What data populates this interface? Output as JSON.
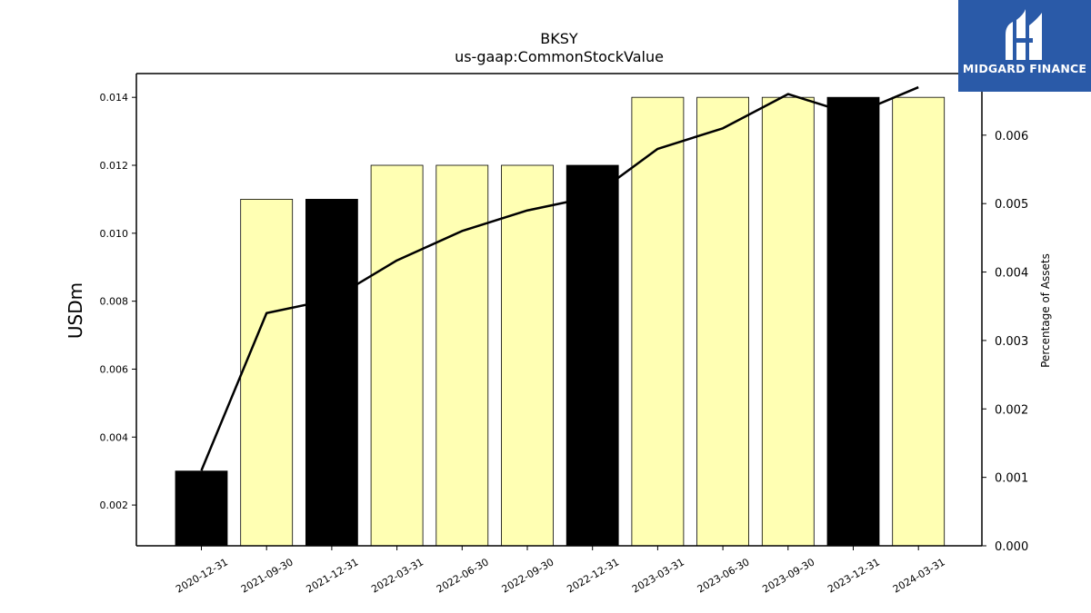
{
  "chart_data": {
    "type": "bar",
    "title": "BKSY",
    "subtitle": "us-gaap:CommonStockValue",
    "ylabel": "USDm",
    "y2label": "Percentage of Assets",
    "ylim": [
      0.0008,
      0.0147
    ],
    "y2lim": [
      0.0,
      0.0069
    ],
    "yticks": [
      "0.002",
      "0.004",
      "0.006",
      "0.008",
      "0.010",
      "0.012",
      "0.014"
    ],
    "y2ticks": [
      "0.000",
      "0.001",
      "0.002",
      "0.003",
      "0.004",
      "0.005",
      "0.006"
    ],
    "categories": [
      "2020-12-31",
      "2021-09-30",
      "2021-12-31",
      "2022-03-31",
      "2022-06-30",
      "2022-09-30",
      "2022-12-31",
      "2023-03-31",
      "2023-06-30",
      "2023-09-30",
      "2023-12-31",
      "2024-03-31"
    ],
    "series": [
      {
        "name": "",
        "kind": "bar",
        "axis": "left",
        "values": [
          0.003,
          0.011,
          0.011,
          0.012,
          0.012,
          0.012,
          0.012,
          0.014,
          0.014,
          0.014,
          0.014,
          0.014
        ],
        "colors": [
          "#000000",
          "#ffffb3",
          "#000000",
          "#ffffb3",
          "#ffffb3",
          "#ffffb3",
          "#000000",
          "#ffffb3",
          "#ffffb3",
          "#ffffb3",
          "#000000",
          "#ffffb3"
        ]
      },
      {
        "name": "",
        "kind": "line",
        "axis": "right",
        "color": "#000000",
        "values": [
          0.0011,
          0.0034,
          0.0036,
          0.00417,
          0.0046,
          0.0049,
          0.0051,
          0.0058,
          0.0061,
          0.0066,
          0.0063,
          0.0067
        ]
      }
    ]
  },
  "logo": {
    "text": "MIDGARD FINANCE",
    "background": "#2a5aa8"
  }
}
